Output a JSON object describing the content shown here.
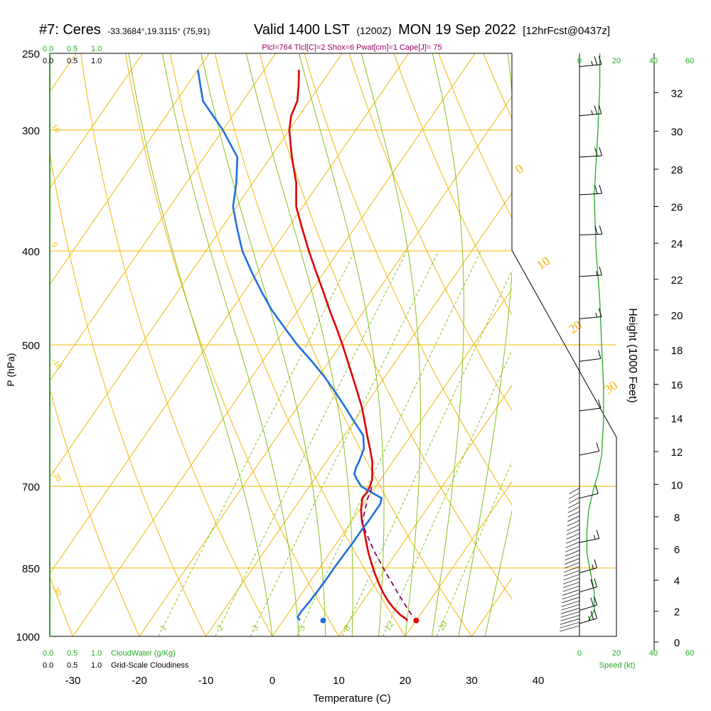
{
  "header": {
    "station": "#7: Ceres",
    "coords": "-33.3684°,19.3115° (75,91)",
    "valid": "Valid 1400 LST",
    "utc": "(1200Z)",
    "date": "MON 19 Sep 2022",
    "forecast": "[12hrFcst@0437z]",
    "indices": "Plcl=764 Tlcl[C]=2 Shox=6 Pwat[cm]=1 Cape[J]= 75"
  },
  "left_scales": {
    "cloudwater_top": [
      "0.0",
      "0.5",
      "1.0"
    ],
    "cloudiness_top": [
      "0.0",
      "0.5",
      "1.0"
    ],
    "cloudwater_bottom": [
      "0.0",
      "0.5",
      "1.0"
    ],
    "cloudwater_label": "CloudWater (g/Kg)",
    "cloudiness_bottom": [
      "0.0",
      "0.5",
      "1.0"
    ],
    "cloudiness_label": "Grid-Scale Cloudiness"
  },
  "right_scales": {
    "speed_top": [
      "0",
      "20",
      "40",
      "60"
    ],
    "speed_bottom": [
      "0",
      "20",
      "40",
      "60"
    ],
    "speed_label": "Speed (kt)",
    "height_label": "Height (1000 Feet)",
    "height_ticks": [
      "0",
      "2",
      "4",
      "6",
      "8",
      "10",
      "12",
      "14",
      "16",
      "18",
      "20",
      "22",
      "24",
      "26",
      "28",
      "30",
      "32"
    ]
  },
  "colors": {
    "isotherm": "#f2b705",
    "dry_adiabat": "#f2b705",
    "moist_adiabat": "#88c020",
    "mixing_ratio": "#88c020",
    "temperature": "#dd0000",
    "dewpoint": "#1e6fe0",
    "parcel": "#880066",
    "speed_line": "#22aa22",
    "indices_text": "#990066"
  },
  "chart_data": {
    "type": "line",
    "diagram": "skew-T log-P",
    "xlabel": "Temperature (C)",
    "ylabel": "P (hPa)",
    "x_ticks": [
      -30,
      -20,
      -10,
      0,
      10,
      20,
      30,
      40
    ],
    "y_ticks": [
      250,
      300,
      400,
      500,
      700,
      850,
      1000
    ],
    "xlim": [
      -34,
      46
    ],
    "ylim": [
      1000,
      250
    ],
    "isotherm_labels": [
      "0",
      "10",
      "20",
      "30"
    ],
    "dry_adiabat_labels": [
      "10",
      "0",
      "-10",
      "-20",
      "-30"
    ],
    "mixing_ratio_labels": [
      "1",
      "2",
      "3",
      "5",
      "8",
      "12",
      "20"
    ],
    "series": [
      {
        "key": "temperature",
        "p": [
          964,
          960,
          950,
          935,
          920,
          900,
          880,
          860,
          840,
          820,
          800,
          780,
          760,
          740,
          720,
          710,
          700,
          690,
          680,
          660,
          640,
          620,
          600,
          580,
          560,
          540,
          520,
          500,
          480,
          460,
          440,
          420,
          400,
          380,
          360,
          340,
          320,
          300,
          290,
          280,
          270,
          260
        ],
        "t": [
          18.7,
          18.4,
          17.0,
          15.3,
          13.8,
          12.0,
          10.4,
          8.8,
          7.3,
          5.8,
          4.4,
          3.0,
          1.5,
          0.2,
          -0.8,
          -0.7,
          -0.9,
          -1.2,
          -1.8,
          -3.1,
          -4.8,
          -6.6,
          -8.4,
          -10.3,
          -12.5,
          -14.8,
          -17.2,
          -19.7,
          -22.4,
          -25.3,
          -28.2,
          -31.3,
          -34.5,
          -37.7,
          -41.0,
          -43.5,
          -46.8,
          -50.0,
          -51.2,
          -51.8,
          -53.2,
          -54.8
        ]
      },
      {
        "key": "dewpoint",
        "p": [
          963,
          955,
          940,
          920,
          900,
          880,
          850,
          820,
          800,
          780,
          760,
          740,
          730,
          720,
          700,
          690,
          680,
          670,
          660,
          640,
          620,
          600,
          580,
          560,
          540,
          520,
          500,
          480,
          460,
          440,
          420,
          400,
          380,
          360,
          340,
          320,
          300,
          280,
          260
        ],
        "t": [
          2.5,
          1.8,
          1.8,
          2.0,
          2.1,
          2.2,
          2.2,
          2.3,
          2.4,
          2.4,
          2.5,
          2.5,
          2.5,
          2.1,
          -2.2,
          -3.4,
          -4.5,
          -4.9,
          -5.1,
          -5.7,
          -7.2,
          -10.0,
          -12.8,
          -15.8,
          -19.0,
          -22.6,
          -26.5,
          -30.2,
          -34.0,
          -37.5,
          -41.0,
          -44.5,
          -47.5,
          -50.5,
          -52.5,
          -55.0,
          -60.0,
          -66.0,
          -70.0
        ]
      },
      {
        "key": "parcel",
        "p": [
          950,
          920,
          900,
          880,
          860,
          840,
          820,
          800,
          780,
          764,
          750,
          735,
          720,
          710,
          700
        ],
        "t": [
          18.7,
          16.0,
          14.2,
          12.4,
          10.5,
          8.7,
          6.8,
          5.0,
          3.2,
          1.8,
          1.2,
          0.6,
          0.0,
          -0.2,
          -0.6
        ]
      }
    ],
    "markers": [
      {
        "key": "surface-temperature",
        "p": 963,
        "t": 20.0
      },
      {
        "key": "surface-dewpoint",
        "p": 963,
        "t": 6.0
      }
    ],
    "wind_barbs": {
      "units": "kt",
      "levels": [
        {
          "p": 258,
          "speed": 25,
          "dir": 285
        },
        {
          "p": 290,
          "speed": 25,
          "dir": 285
        },
        {
          "p": 320,
          "speed": 20,
          "dir": 280
        },
        {
          "p": 350,
          "speed": 20,
          "dir": 280
        },
        {
          "p": 385,
          "speed": 20,
          "dir": 275
        },
        {
          "p": 425,
          "speed": 15,
          "dir": 280
        },
        {
          "p": 470,
          "speed": 15,
          "dir": 285
        },
        {
          "p": 520,
          "speed": 10,
          "dir": 290
        },
        {
          "p": 585,
          "speed": 10,
          "dir": 290
        },
        {
          "p": 650,
          "speed": 10,
          "dir": 300
        },
        {
          "p": 720,
          "speed": 10,
          "dir": 305
        },
        {
          "p": 800,
          "speed": 15,
          "dir": 300
        },
        {
          "p": 860,
          "speed": 15,
          "dir": 310
        },
        {
          "p": 900,
          "speed": 20,
          "dir": 310
        },
        {
          "p": 940,
          "speed": 20,
          "dir": 310
        },
        {
          "p": 970,
          "speed": 25,
          "dir": 310
        }
      ]
    },
    "speed_profile": {
      "units": "kt",
      "p": [
        963,
        940,
        900,
        860,
        820,
        780,
        740,
        700,
        680,
        650,
        600,
        550,
        500,
        450,
        400,
        350,
        300,
        270,
        250
      ],
      "speed": [
        5,
        8,
        8,
        6,
        4,
        4,
        5,
        8,
        10,
        12,
        13,
        13,
        12,
        11,
        9,
        8,
        10,
        11,
        11
      ]
    }
  }
}
